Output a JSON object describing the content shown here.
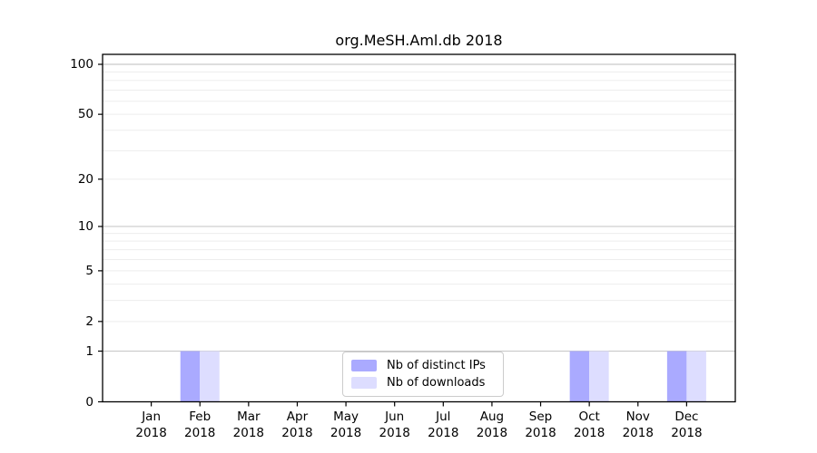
{
  "figure": {
    "title": "org.MeSH.Aml.db 2018"
  },
  "chart_data": {
    "type": "bar",
    "title": "org.MeSH.Aml.db 2018",
    "categories": [
      "Jan",
      "Feb",
      "Mar",
      "Apr",
      "May",
      "Jun",
      "Jul",
      "Aug",
      "Sep",
      "Oct",
      "Nov",
      "Dec"
    ],
    "category_year": "2018",
    "series": [
      {
        "name": "Nb of distinct IPs",
        "color": "#aaaaff",
        "values": [
          0,
          1,
          0,
          0,
          0,
          0,
          0,
          0,
          0,
          1,
          0,
          1
        ]
      },
      {
        "name": "Nb of downloads",
        "color": "#ddddff",
        "values": [
          0,
          1,
          0,
          0,
          0,
          0,
          0,
          0,
          0,
          1,
          0,
          1
        ]
      }
    ],
    "xlabel": "",
    "ylabel": "",
    "y_ticks": [
      0,
      1,
      2,
      5,
      10,
      20,
      50,
      100
    ],
    "y_scale": "log1p",
    "ylim": [
      0,
      115
    ],
    "grid": "horizontal",
    "grid_major_values": [
      1,
      10,
      100
    ],
    "grid_minor_values": [
      2,
      3,
      4,
      5,
      6,
      7,
      8,
      9,
      20,
      30,
      40,
      50,
      60,
      70,
      80,
      90
    ],
    "legend": {
      "position": "lower center"
    }
  },
  "colors": {
    "bar_distinct_ips": "#aaaaff",
    "bar_downloads": "#ddddff",
    "grid_major": "#c9c9c9",
    "grid_minor": "#ededed",
    "axis": "#000000",
    "legend_border": "#cccccc",
    "background": "#ffffff"
  }
}
